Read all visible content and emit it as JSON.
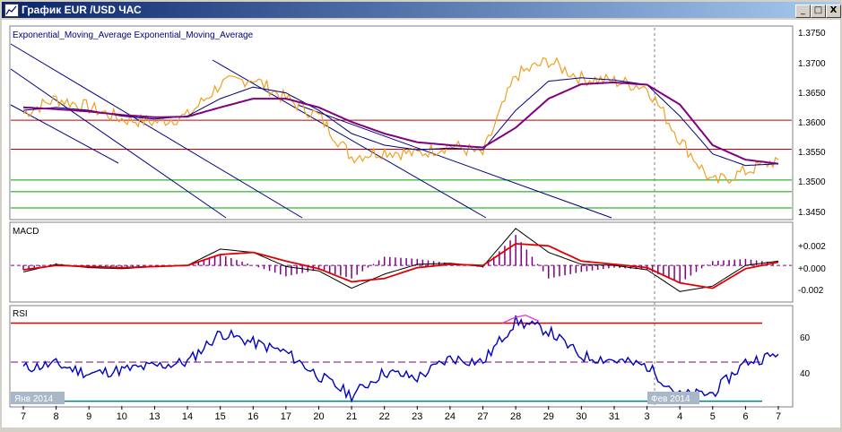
{
  "window": {
    "title": "График EUR /USD  ЧАС",
    "minimize_glyph": "_",
    "maximize_glyph": "□",
    "close_glyph": "X"
  },
  "colors": {
    "price": "#f0a020",
    "ema_fast": "#000080",
    "ema_slow": "#800080",
    "channel": "#000080",
    "red_level": "#c00000",
    "green_level": "#00a000",
    "macd_line": "#000000",
    "macd_signal": "#e00000",
    "macd_hist": "#800080",
    "rsi_line": "#0000c0",
    "rsi_over": "#e040e0",
    "rsi_upper": "#e00000",
    "rsi_lower": "#008080",
    "rsi_mid": "#800080"
  },
  "chart_data": [
    {
      "type": "line",
      "title": "Exponential_Moving_Average Exponential_Moving_Average",
      "ylim": [
        1.3435,
        1.3762
      ],
      "yticks": [
        "1.3750",
        "1.3700",
        "1.3650",
        "1.3600",
        "1.3550",
        "1.3500",
        "1.3450"
      ],
      "horizontal_levels": {
        "red": [
          1.3603,
          1.3553
        ],
        "green": [
          1.35,
          1.348,
          1.3452
        ]
      },
      "x": [
        0,
        1,
        2,
        3,
        4,
        5,
        6,
        7,
        8,
        9,
        10,
        11,
        12,
        13,
        14,
        15,
        16,
        17,
        18,
        19,
        20,
        21,
        22,
        23
      ],
      "series": [
        {
          "values": [
            1.3615,
            1.364,
            1.3625,
            1.3605,
            1.36,
            1.361,
            1.3665,
            1.3675,
            1.364,
            1.361,
            1.354,
            1.355,
            1.3545,
            1.356,
            1.3545,
            1.368,
            1.3705,
            1.3675,
            1.367,
            1.366,
            1.357,
            1.3495,
            1.3515,
            1.3535
          ]
        },
        {
          "values": [
            1.362,
            1.3625,
            1.362,
            1.361,
            1.3605,
            1.361,
            1.364,
            1.366,
            1.365,
            1.362,
            1.358,
            1.356,
            1.3552,
            1.3555,
            1.3552,
            1.362,
            1.367,
            1.3676,
            1.3672,
            1.3664,
            1.361,
            1.3545,
            1.3525,
            1.3528
          ]
        },
        {
          "values": [
            1.3625,
            1.3622,
            1.3618,
            1.3612,
            1.3608,
            1.3609,
            1.3625,
            1.364,
            1.364,
            1.3625,
            1.36,
            1.358,
            1.3565,
            1.356,
            1.3556,
            1.359,
            1.364,
            1.3665,
            1.3668,
            1.3664,
            1.363,
            1.356,
            1.3535,
            1.3528
          ]
        }
      ]
    },
    {
      "type": "line",
      "title": "MACD",
      "ylim": [
        -0.0032,
        0.0038
      ],
      "yticks": [
        "+0.002",
        "+0.000",
        "-0.002"
      ],
      "x": [
        0,
        1,
        2,
        3,
        4,
        5,
        6,
        7,
        8,
        9,
        10,
        11,
        12,
        13,
        14,
        15,
        16,
        17,
        18,
        19,
        20,
        21,
        22,
        23
      ],
      "series": [
        {
          "values": [
            -0.0006,
            0.0001,
            -0.0002,
            -0.0003,
            -0.0001,
            0.0,
            0.0015,
            0.0012,
            -0.0001,
            -0.0005,
            -0.0021,
            -0.0008,
            0.0001,
            0.0002,
            -0.0001,
            0.0034,
            0.0012,
            0.0001,
            0.0,
            -0.0004,
            -0.0024,
            -0.0019,
            0.0,
            0.0004
          ]
        },
        {
          "values": [
            -0.0004,
            0.0,
            -0.0001,
            -0.0002,
            -0.0001,
            0.0,
            0.001,
            0.0012,
            0.0004,
            -0.0003,
            -0.0015,
            -0.0012,
            -0.0002,
            0.0001,
            0.0,
            0.002,
            0.0018,
            0.0004,
            0.0001,
            -0.0002,
            -0.0016,
            -0.0021,
            -0.0003,
            0.0003
          ]
        }
      ]
    },
    {
      "type": "line",
      "title": "RSI",
      "ylim": [
        28,
        78
      ],
      "yticks": [
        "60",
        "40"
      ],
      "upper_level": 70,
      "lower_level": 30,
      "mid_level": 50,
      "x": [
        0,
        1,
        2,
        3,
        4,
        5,
        6,
        7,
        8,
        9,
        10,
        11,
        12,
        13,
        14,
        15,
        16,
        17,
        18,
        19,
        20,
        21,
        22,
        23
      ],
      "series": [
        {
          "values": [
            47,
            49,
            44,
            46,
            48,
            50,
            65,
            60,
            55,
            43,
            33,
            45,
            42,
            52,
            50,
            71,
            66,
            53,
            51,
            48,
            33,
            34,
            50,
            54
          ]
        }
      ]
    }
  ],
  "x_axis": {
    "labels": [
      "7",
      "8",
      "9",
      "10",
      "13",
      "14",
      "15",
      "16",
      "17",
      "20",
      "21",
      "22",
      "23",
      "24",
      "27",
      "28",
      "29",
      "30",
      "31",
      "3",
      "4",
      "5",
      "6",
      "7"
    ],
    "period_labels": [
      "Янв 2014",
      "Фев 2014"
    ]
  }
}
